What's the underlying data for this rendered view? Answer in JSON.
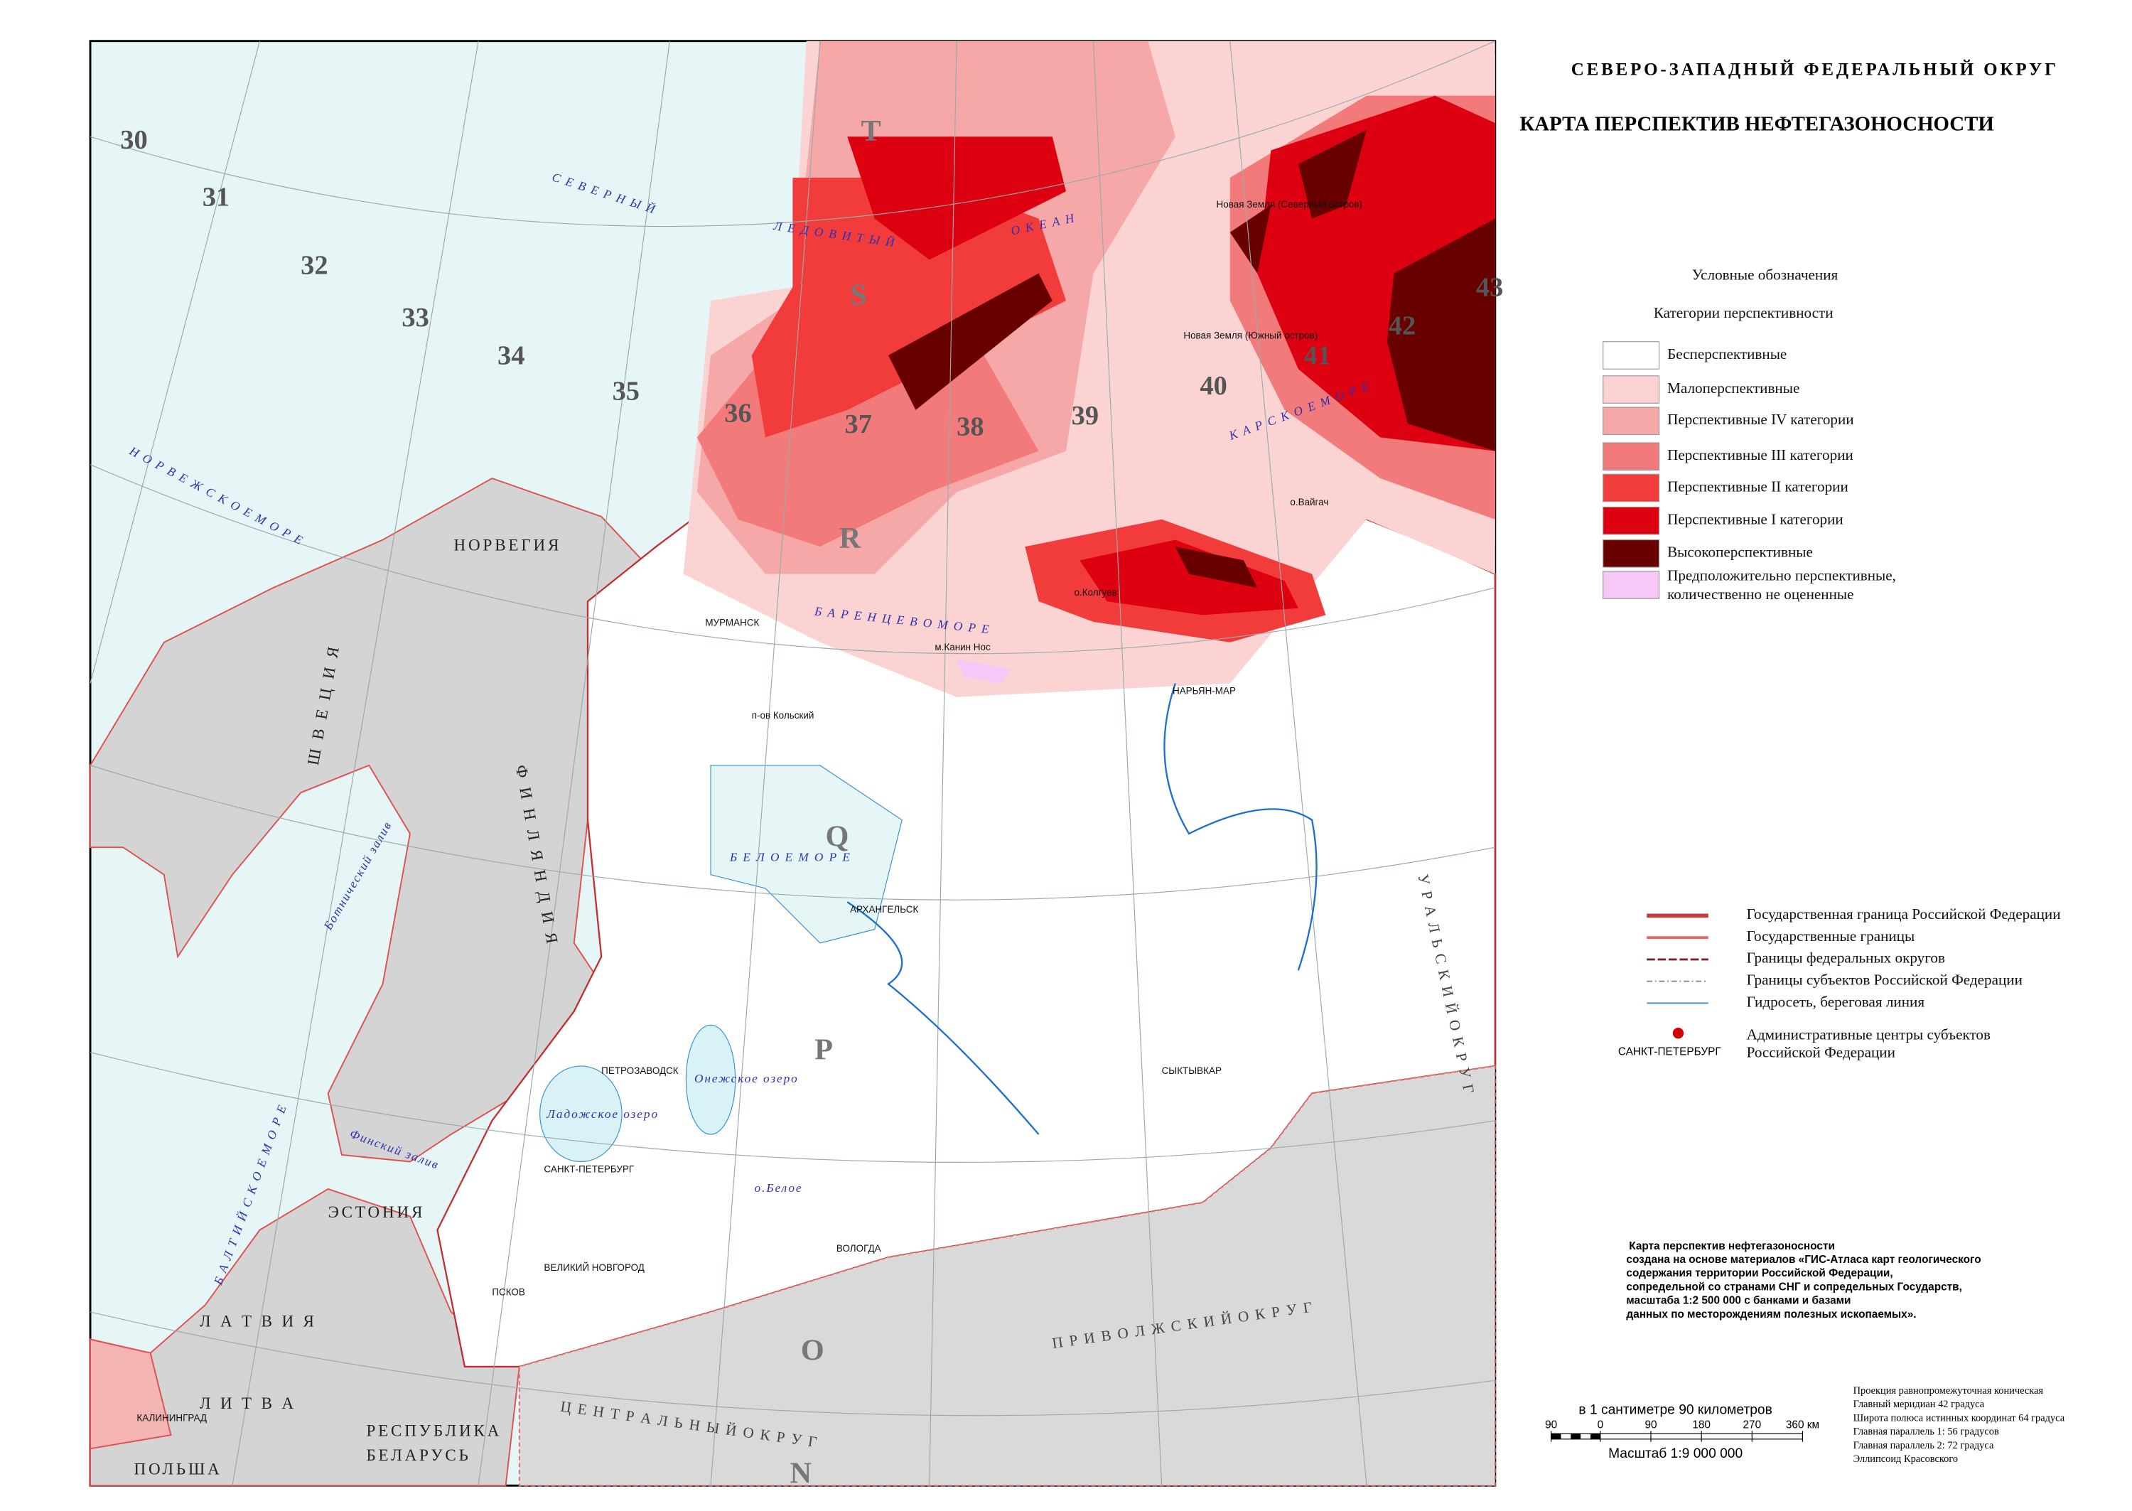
{
  "header": {
    "district": "СЕВЕРО-ЗАПАДНЫЙ ФЕДЕРАЛЬНЫЙ ОКРУГ",
    "title": "КАРТА ПЕРСПЕКТИВ НЕФТЕГАЗОНОСНОСТИ"
  },
  "legend": {
    "heading": "Условные обозначения",
    "subheading": "Категории перспективности",
    "items": [
      {
        "label": "Бесперспективные",
        "color": "#ffffff"
      },
      {
        "label": "Малоперспективные",
        "color": "#fbd3d3"
      },
      {
        "label": "Перспективные IV категории",
        "color": "#f6a7a7"
      },
      {
        "label": "Перспективные III категории",
        "color": "#f37a7a"
      },
      {
        "label": "Перспективные II категории",
        "color": "#f23c3c"
      },
      {
        "label": "Перспективные I категории",
        "color": "#dc0010"
      },
      {
        "label": "Высокоперспективные",
        "color": "#680000"
      },
      {
        "label": [
          "Предположительно перспективные,",
          "количественно не оцененные"
        ],
        "color": "#f7c8f7"
      }
    ]
  },
  "lines_legend": {
    "items": [
      "Государственная граница Российской Федерации",
      "Государственные границы",
      "Границы федеральных округов",
      "Границы субъектов Российской Федерации",
      "Гидросеть, береговая линия"
    ],
    "capital_sample": "САНКТ-ПЕТЕРБУРГ",
    "capital_label": [
      "Административные центры субъектов",
      "Российской Федерации"
    ]
  },
  "note": [
    "Карта  перспектив нефтегазоносности",
    "создана на основе материалов «ГИС-Атласа карт геологического",
    "содержания территории Российской Федерации,",
    "сопредельной со странами СНГ и сопредельных Государств,",
    "масштаба 1:2 500 000 с банками и базами",
    "данных по месторождениям полезных ископаемых»."
  ],
  "projection": [
    "Проекция  равнопромежуточная коническая",
    "Главный меридиан 42 градуса",
    "Широта полюса истинных координат 64 градуса",
    "Главная параллель 1: 56 градусов",
    "Главная параллель 2: 72 градуса",
    "Эллипсоид Красовского"
  ],
  "scale": {
    "text": "в 1 сантиметре  90 километров",
    "ticks": [
      "90",
      "0",
      "90",
      "180",
      "270",
      "360 км"
    ],
    "ratio": "Масштаб 1:9 000 000"
  },
  "map": {
    "sheet_numbers": [
      "30",
      "31",
      "32",
      "33",
      "34",
      "35",
      "36",
      "37",
      "38",
      "39",
      "40",
      "41",
      "42",
      "43"
    ],
    "sheet_letters": [
      "T",
      "S",
      "R",
      "Q",
      "P",
      "O",
      "N"
    ],
    "labels": [
      "С Е В Е Р Н Ы Й",
      "Л Е Д О В И Т Ы Й",
      "О К Е А Н",
      "Н О Р В Е Ж С К О Е  М О Р Е",
      "Б А Р Е Н Ц Е В О  М О Р Е",
      "К А Р С К О Е  М О Р Е",
      "Б Е Л О Е  М О Р Е",
      "Б А Л Т И Й С К О Е  М О Р Е",
      "НОРВЕГИЯ",
      "Ш В Е Ц И Я",
      "Ф И Н Л Я Н Д И Я",
      "ЭСТОНИЯ",
      "Л А Т В И Я",
      "Л И Т В А",
      "ПОЛЬША",
      "РЕСПУБЛИКА",
      "БЕЛАРУСЬ",
      "МУРМАНСК",
      "п-ов Кольский",
      "АРХАНГЕЛЬСК",
      "НАРЬЯН-МАР",
      "СЫКТЫВКАР",
      "ПЕТРОЗАВОДСК",
      "САНКТ-ПЕТЕРБУРГ",
      "ВЕЛИКИЙ НОВГОРОД",
      "ПСКОВ",
      "ВОЛОГДА",
      "КАЛИНИНГРАД",
      "о.Колгуев",
      "о.Вайгач",
      "Новая Земля (Северный остров)",
      "Новая Земля (Южный остров)",
      "П Р И В О Л Ж С К И Й   О К Р У Г",
      "Ц Е Н Т Р А Л Ь Н Ы Й   О К Р У Г",
      "У Р А Л Ь С К И Й   О К Р У Г",
      "Ботнический залив",
      "Финский залив",
      "Ладожское озеро",
      "Онежское озеро",
      "о.Белое",
      "м.Канин Нос"
    ]
  }
}
